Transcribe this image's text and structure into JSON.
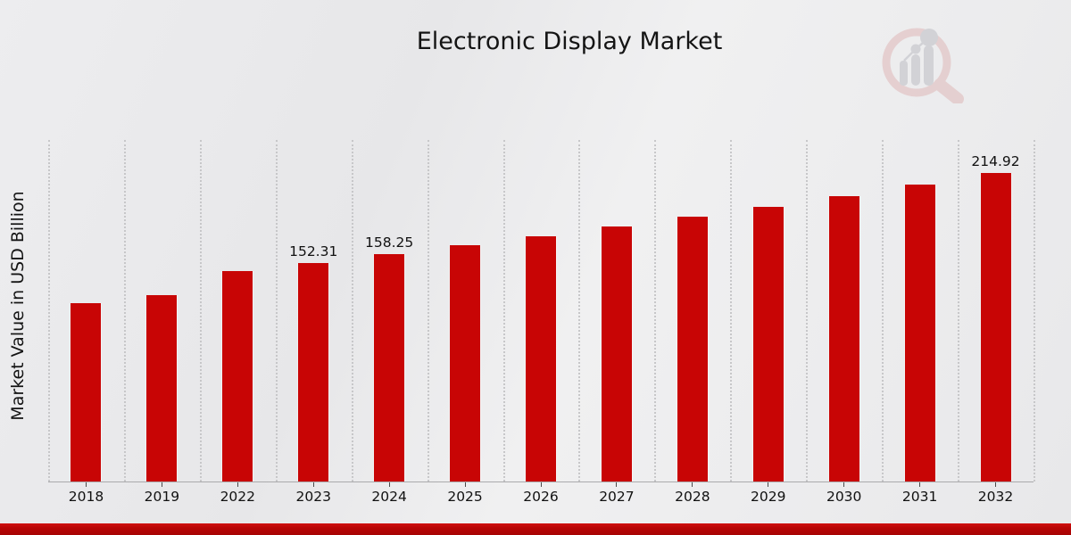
{
  "header": {
    "title": "Electronic Display Market"
  },
  "chart_data": {
    "type": "bar",
    "title": "Electronic Display Market",
    "xlabel": "",
    "ylabel": "Market Value in USD Billion",
    "categories": [
      "2018",
      "2019",
      "2022",
      "2023",
      "2024",
      "2025",
      "2026",
      "2027",
      "2028",
      "2029",
      "2030",
      "2031",
      "2032"
    ],
    "values": [
      124.4,
      130.1,
      146.7,
      152.31,
      158.25,
      164.4,
      170.8,
      177.5,
      184.4,
      191.6,
      199.1,
      206.8,
      214.92
    ],
    "data_labels": [
      "",
      "",
      "",
      "152.31",
      "158.25",
      "",
      "",
      "",
      "",
      "",
      "",
      "",
      "214.92"
    ],
    "ylim": [
      0,
      238
    ],
    "bar_color": "#c80505",
    "grid": "vertical-dotted",
    "gridline_color": "#c7c7c9",
    "legend_position": "none"
  },
  "watermark": {
    "name": "magnifier-bar-chart-logo",
    "ring_color": "#dfb8b8",
    "bars_color": "#bcbdc4"
  },
  "footer": {
    "accent_bar_color": "#b80505"
  }
}
